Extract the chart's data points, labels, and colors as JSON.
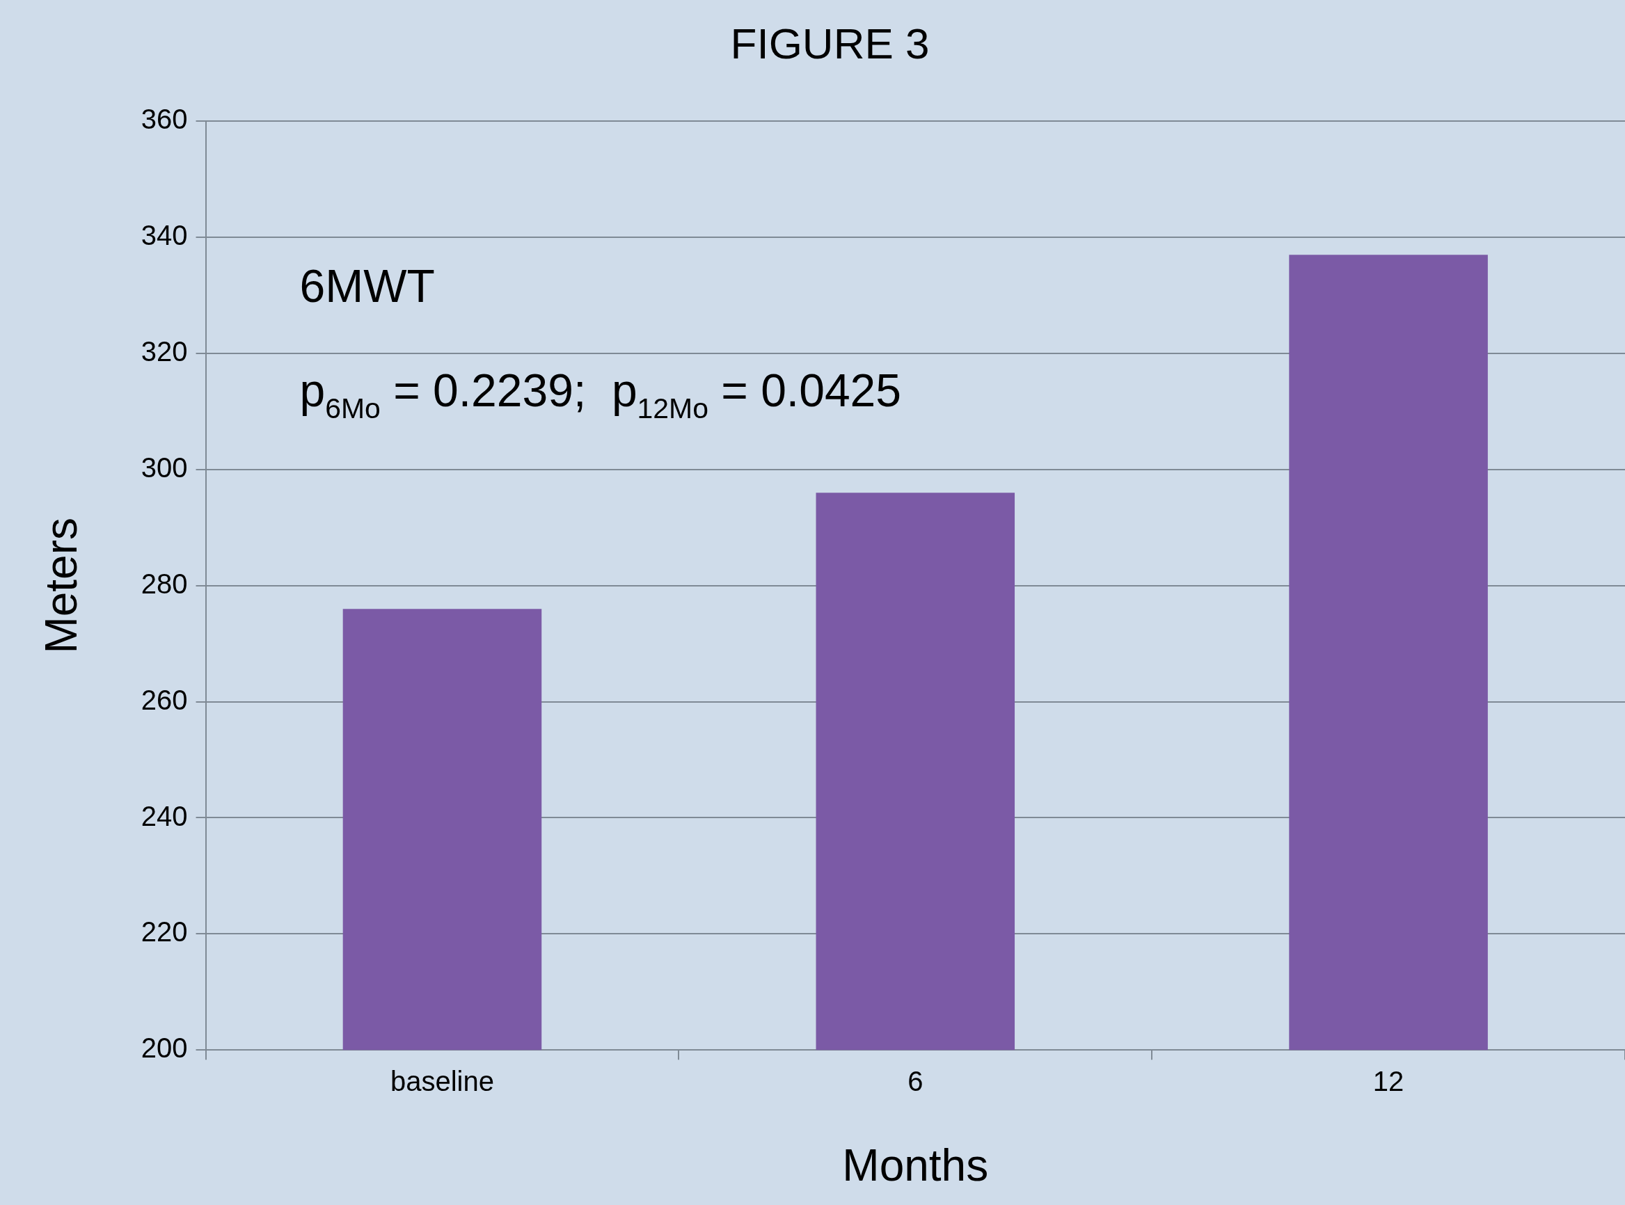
{
  "chart_data": {
    "type": "bar",
    "title": "FIGURE 3",
    "xlabel": "Months",
    "ylabel": "Meters",
    "categories": [
      "baseline",
      "6",
      "12"
    ],
    "values": [
      276,
      296,
      337
    ],
    "color": "#7b5aa6",
    "ylim": [
      200,
      360
    ],
    "yticks": [
      200,
      220,
      240,
      260,
      280,
      300,
      320,
      340,
      360
    ],
    "grid": "y",
    "annotations": [
      "6MWT",
      "p$_{6Mo}$ = 0.2239;  p$_{12Mo}$ = 0.0425"
    ]
  }
}
